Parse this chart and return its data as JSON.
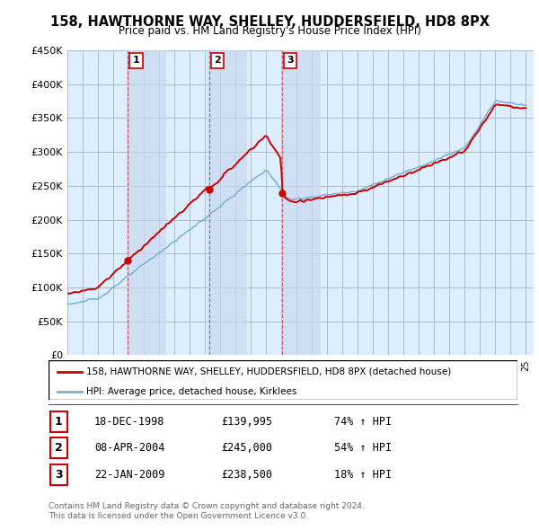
{
  "title": "158, HAWTHORNE WAY, SHELLEY, HUDDERSFIELD, HD8 8PX",
  "subtitle": "Price paid vs. HM Land Registry's House Price Index (HPI)",
  "y_ticks": [
    0,
    50000,
    100000,
    150000,
    200000,
    250000,
    300000,
    350000,
    400000,
    450000
  ],
  "y_tick_labels": [
    "£0",
    "£50K",
    "£100K",
    "£150K",
    "£200K",
    "£250K",
    "£300K",
    "£350K",
    "£400K",
    "£450K"
  ],
  "transactions": [
    {
      "num": 1,
      "date": "18-DEC-1998",
      "price": 139995,
      "year": 1998.96,
      "pct": "74%",
      "dir": "↑"
    },
    {
      "num": 2,
      "date": "08-APR-2004",
      "price": 245000,
      "year": 2004.27,
      "pct": "54%",
      "dir": "↑"
    },
    {
      "num": 3,
      "date": "22-JAN-2009",
      "price": 238500,
      "year": 2009.06,
      "pct": "18%",
      "dir": "↑"
    }
  ],
  "legend_line1": "158, HAWTHORNE WAY, SHELLEY, HUDDERSFIELD, HD8 8PX (detached house)",
  "legend_line2": "HPI: Average price, detached house, Kirklees",
  "footer1": "Contains HM Land Registry data © Crown copyright and database right 2024.",
  "footer2": "This data is licensed under the Open Government Licence v3.0.",
  "red_color": "#cc0000",
  "blue_color": "#7ab0d4",
  "bg_chart": "#ddeeff",
  "bg_outer": "#ffffff",
  "grid_color": "#aabbcc",
  "label_box_color": "#cc0000",
  "col_bg_color": "#c8d8ee"
}
